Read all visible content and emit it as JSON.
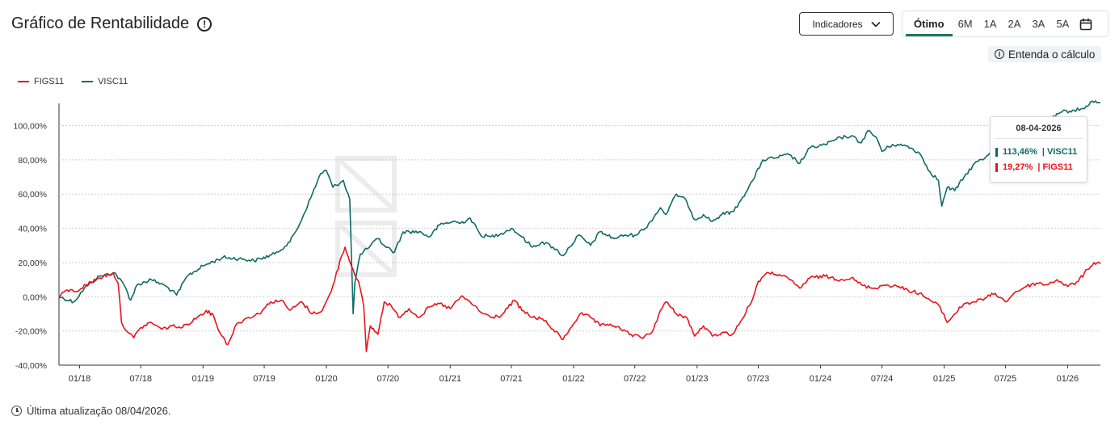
{
  "header": {
    "title": "Gráfico de Rentabilidade",
    "info_icon": "info-icon",
    "indicators_label": "Indicadores",
    "periods": [
      "Ótimo",
      "6M",
      "1A",
      "2A",
      "3A",
      "5A"
    ],
    "active_period": "Ótimo",
    "explain_label": "Entenda o cálculo"
  },
  "legend": [
    {
      "name": "FIGS11",
      "color": "#e8141b"
    },
    {
      "name": "VISC11",
      "color": "#0f6b63"
    }
  ],
  "tooltip": {
    "date": "08-04-2026",
    "rows": [
      {
        "value": "113,46%",
        "label": "| VISC11",
        "color": "#0f6b63"
      },
      {
        "value": "19,27%",
        "label": "| FIGS11",
        "color": "#e8141b"
      }
    ]
  },
  "footer": {
    "text": "Última atualização 08/04/2026."
  },
  "colors": {
    "accent": "#1b7a5e",
    "figs": "#e8141b",
    "visc": "#0f6b63",
    "grid": "#cfcfcf"
  },
  "chart_data": {
    "type": "line",
    "title": "Gráfico de Rentabilidade",
    "ylim": [
      -40,
      113
    ],
    "y_ticks": [
      "100,00%",
      "80,00%",
      "60,00%",
      "40,00%",
      "20,00%",
      "0,00%",
      "-20,00%",
      "-40,00%"
    ],
    "y_tick_values": [
      100,
      80,
      60,
      40,
      20,
      0,
      -20,
      -40
    ],
    "x_range": [
      "2017-11-01",
      "2026-04-08"
    ],
    "x_ticks": [
      "01/18",
      "07/18",
      "01/19",
      "07/19",
      "01/20",
      "07/20",
      "01/21",
      "07/21",
      "01/22",
      "07/22",
      "01/23",
      "07/23",
      "01/24",
      "07/24",
      "01/25",
      "07/25",
      "01/26"
    ],
    "x_tick_dates": [
      "2018-01-01",
      "2018-07-01",
      "2019-01-01",
      "2019-07-01",
      "2020-01-01",
      "2020-07-01",
      "2021-01-01",
      "2021-07-01",
      "2022-01-01",
      "2022-07-01",
      "2023-01-01",
      "2023-07-01",
      "2024-01-01",
      "2024-07-01",
      "2025-01-01",
      "2025-07-01",
      "2026-01-01"
    ],
    "series": [
      {
        "name": "VISC11",
        "color": "#0f6b63",
        "points": [
          [
            "2017-11-01",
            0
          ],
          [
            "2017-12-15",
            -3
          ],
          [
            "2018-01-15",
            5
          ],
          [
            "2018-03-01",
            12
          ],
          [
            "2018-04-15",
            14
          ],
          [
            "2018-05-15",
            6
          ],
          [
            "2018-06-01",
            -2
          ],
          [
            "2018-06-20",
            7
          ],
          [
            "2018-08-01",
            10
          ],
          [
            "2018-09-15",
            6
          ],
          [
            "2018-10-15",
            1
          ],
          [
            "2018-11-15",
            12
          ],
          [
            "2019-01-01",
            18
          ],
          [
            "2019-03-01",
            23
          ],
          [
            "2019-05-01",
            22
          ],
          [
            "2019-06-01",
            21
          ],
          [
            "2019-08-01",
            25
          ],
          [
            "2019-09-15",
            32
          ],
          [
            "2019-10-15",
            43
          ],
          [
            "2019-11-20",
            60
          ],
          [
            "2019-12-15",
            72
          ],
          [
            "2019-12-31",
            74
          ],
          [
            "2020-01-20",
            64
          ],
          [
            "2020-02-20",
            68
          ],
          [
            "2020-03-10",
            57
          ],
          [
            "2020-03-20",
            -10
          ],
          [
            "2020-03-25",
            8
          ],
          [
            "2020-04-10",
            25
          ],
          [
            "2020-05-01",
            28
          ],
          [
            "2020-06-01",
            34
          ],
          [
            "2020-06-20",
            30
          ],
          [
            "2020-07-20",
            26
          ],
          [
            "2020-08-15",
            38
          ],
          [
            "2020-10-01",
            38
          ],
          [
            "2020-11-01",
            35
          ],
          [
            "2020-12-01",
            42
          ],
          [
            "2021-01-10",
            44
          ],
          [
            "2021-02-01",
            43
          ],
          [
            "2021-03-01",
            46
          ],
          [
            "2021-04-01",
            36
          ],
          [
            "2021-05-01",
            35
          ],
          [
            "2021-06-01",
            37
          ],
          [
            "2021-07-01",
            40
          ],
          [
            "2021-08-01",
            35
          ],
          [
            "2021-09-01",
            29
          ],
          [
            "2021-10-01",
            32
          ],
          [
            "2021-11-01",
            29
          ],
          [
            "2021-12-01",
            24
          ],
          [
            "2021-12-20",
            29
          ],
          [
            "2022-01-15",
            36
          ],
          [
            "2022-02-20",
            30
          ],
          [
            "2022-03-20",
            38
          ],
          [
            "2022-05-01",
            34
          ],
          [
            "2022-06-01",
            36
          ],
          [
            "2022-07-01",
            36
          ],
          [
            "2022-08-01",
            40
          ],
          [
            "2022-09-15",
            52
          ],
          [
            "2022-10-01",
            48
          ],
          [
            "2022-11-01",
            60
          ],
          [
            "2022-12-01",
            56
          ],
          [
            "2022-12-25",
            45
          ],
          [
            "2023-01-20",
            48
          ],
          [
            "2023-02-15",
            44
          ],
          [
            "2023-03-15",
            48
          ],
          [
            "2023-04-20",
            50
          ],
          [
            "2023-05-15",
            58
          ],
          [
            "2023-06-15",
            68
          ],
          [
            "2023-07-15",
            80
          ],
          [
            "2023-08-15",
            81
          ],
          [
            "2023-10-01",
            83
          ],
          [
            "2023-11-01",
            78
          ],
          [
            "2023-12-01",
            87
          ],
          [
            "2024-01-15",
            89
          ],
          [
            "2024-03-01",
            93
          ],
          [
            "2024-04-01",
            94
          ],
          [
            "2024-05-01",
            90
          ],
          [
            "2024-05-20",
            97
          ],
          [
            "2024-06-15",
            93
          ],
          [
            "2024-07-01",
            85
          ],
          [
            "2024-08-01",
            89
          ],
          [
            "2024-09-15",
            88
          ],
          [
            "2024-10-20",
            84
          ],
          [
            "2024-11-20",
            73
          ],
          [
            "2024-12-15",
            68
          ],
          [
            "2024-12-25",
            53
          ],
          [
            "2025-01-10",
            64
          ],
          [
            "2025-02-01",
            62
          ],
          [
            "2025-03-01",
            70
          ],
          [
            "2025-04-01",
            78
          ],
          [
            "2025-05-01",
            81
          ],
          [
            "2025-06-01",
            88
          ],
          [
            "2025-06-20",
            83
          ],
          [
            "2025-07-20",
            90
          ],
          [
            "2025-09-01",
            95
          ],
          [
            "2025-10-01",
            99
          ],
          [
            "2025-11-15",
            104
          ],
          [
            "2025-12-15",
            108
          ],
          [
            "2026-01-20",
            109
          ],
          [
            "2026-02-20",
            110
          ],
          [
            "2026-03-10",
            114
          ],
          [
            "2026-04-08",
            113.46
          ]
        ]
      },
      {
        "name": "FIGS11",
        "color": "#e8141b",
        "points": [
          [
            "2017-11-01",
            0
          ],
          [
            "2017-11-25",
            4
          ],
          [
            "2017-12-20",
            3
          ],
          [
            "2018-01-20",
            7
          ],
          [
            "2018-03-01",
            11
          ],
          [
            "2018-04-10",
            14
          ],
          [
            "2018-04-25",
            8
          ],
          [
            "2018-05-05",
            -15
          ],
          [
            "2018-05-25",
            -21
          ],
          [
            "2018-06-10",
            -24
          ],
          [
            "2018-07-01",
            -18
          ],
          [
            "2018-08-01",
            -15
          ],
          [
            "2018-09-01",
            -19
          ],
          [
            "2018-10-01",
            -17
          ],
          [
            "2018-11-01",
            -18
          ],
          [
            "2018-12-15",
            -12
          ],
          [
            "2019-01-10",
            -8
          ],
          [
            "2019-02-01",
            -11
          ],
          [
            "2019-02-20",
            -21
          ],
          [
            "2019-03-15",
            -28
          ],
          [
            "2019-04-10",
            -16
          ],
          [
            "2019-05-15",
            -12
          ],
          [
            "2019-06-15",
            -10
          ],
          [
            "2019-07-20",
            -3
          ],
          [
            "2019-08-20",
            -2
          ],
          [
            "2019-09-15",
            -8
          ],
          [
            "2019-10-20",
            -3
          ],
          [
            "2019-11-20",
            -10
          ],
          [
            "2019-12-20",
            -8
          ],
          [
            "2020-01-15",
            3
          ],
          [
            "2020-02-15",
            24
          ],
          [
            "2020-02-25",
            29
          ],
          [
            "2020-03-15",
            18
          ],
          [
            "2020-04-05",
            9
          ],
          [
            "2020-04-20",
            -5
          ],
          [
            "2020-04-28",
            -32
          ],
          [
            "2020-05-10",
            -17
          ],
          [
            "2020-06-01",
            -22
          ],
          [
            "2020-06-20",
            -3
          ],
          [
            "2020-07-10",
            -5
          ],
          [
            "2020-08-01",
            -12
          ],
          [
            "2020-09-01",
            -7
          ],
          [
            "2020-10-01",
            -12
          ],
          [
            "2020-11-01",
            -6
          ],
          [
            "2020-12-01",
            -4
          ],
          [
            "2021-01-01",
            -7
          ],
          [
            "2021-02-01",
            0
          ],
          [
            "2021-03-01",
            -3
          ],
          [
            "2021-04-01",
            -9
          ],
          [
            "2021-05-01",
            -12
          ],
          [
            "2021-06-01",
            -11
          ],
          [
            "2021-07-10",
            -2
          ],
          [
            "2021-08-01",
            -8
          ],
          [
            "2021-09-01",
            -12
          ],
          [
            "2021-10-01",
            -13
          ],
          [
            "2021-11-01",
            -19
          ],
          [
            "2021-12-01",
            -25
          ],
          [
            "2021-12-20",
            -19
          ],
          [
            "2022-01-20",
            -10
          ],
          [
            "2022-02-20",
            -12
          ],
          [
            "2022-03-20",
            -17
          ],
          [
            "2022-04-20",
            -16
          ],
          [
            "2022-05-20",
            -19
          ],
          [
            "2022-06-20",
            -22
          ],
          [
            "2022-07-20",
            -24
          ],
          [
            "2022-08-20",
            -21
          ],
          [
            "2022-09-15",
            -8
          ],
          [
            "2022-10-01",
            -3
          ],
          [
            "2022-11-01",
            -10
          ],
          [
            "2022-12-01",
            -12
          ],
          [
            "2022-12-25",
            -23
          ],
          [
            "2023-01-20",
            -17
          ],
          [
            "2023-02-15",
            -23
          ],
          [
            "2023-03-15",
            -21
          ],
          [
            "2023-04-15",
            -22
          ],
          [
            "2023-05-15",
            -13
          ],
          [
            "2023-06-15",
            -1
          ],
          [
            "2023-07-01",
            9
          ],
          [
            "2023-08-01",
            14
          ],
          [
            "2023-09-01",
            13
          ],
          [
            "2023-10-01",
            10
          ],
          [
            "2023-11-01",
            5
          ],
          [
            "2023-12-01",
            11
          ],
          [
            "2024-01-15",
            12
          ],
          [
            "2024-03-01",
            10
          ],
          [
            "2024-04-01",
            11
          ],
          [
            "2024-05-01",
            7
          ],
          [
            "2024-06-01",
            5
          ],
          [
            "2024-07-15",
            7
          ],
          [
            "2024-08-15",
            6
          ],
          [
            "2024-09-15",
            4
          ],
          [
            "2024-10-20",
            2
          ],
          [
            "2024-11-20",
            -2
          ],
          [
            "2024-12-20",
            -6
          ],
          [
            "2025-01-10",
            -15
          ],
          [
            "2025-02-01",
            -10
          ],
          [
            "2025-03-01",
            -4
          ],
          [
            "2025-04-01",
            -3
          ],
          [
            "2025-05-01",
            -1
          ],
          [
            "2025-06-01",
            2
          ],
          [
            "2025-07-01",
            -3
          ],
          [
            "2025-08-01",
            3
          ],
          [
            "2025-09-01",
            6
          ],
          [
            "2025-10-01",
            8
          ],
          [
            "2025-11-01",
            7
          ],
          [
            "2025-12-01",
            10
          ],
          [
            "2026-01-01",
            6
          ],
          [
            "2026-02-01",
            9
          ],
          [
            "2026-03-01",
            16
          ],
          [
            "2026-03-20",
            20
          ],
          [
            "2026-04-08",
            19.27
          ]
        ]
      }
    ],
    "legend_position": "top-left",
    "grid": true
  }
}
